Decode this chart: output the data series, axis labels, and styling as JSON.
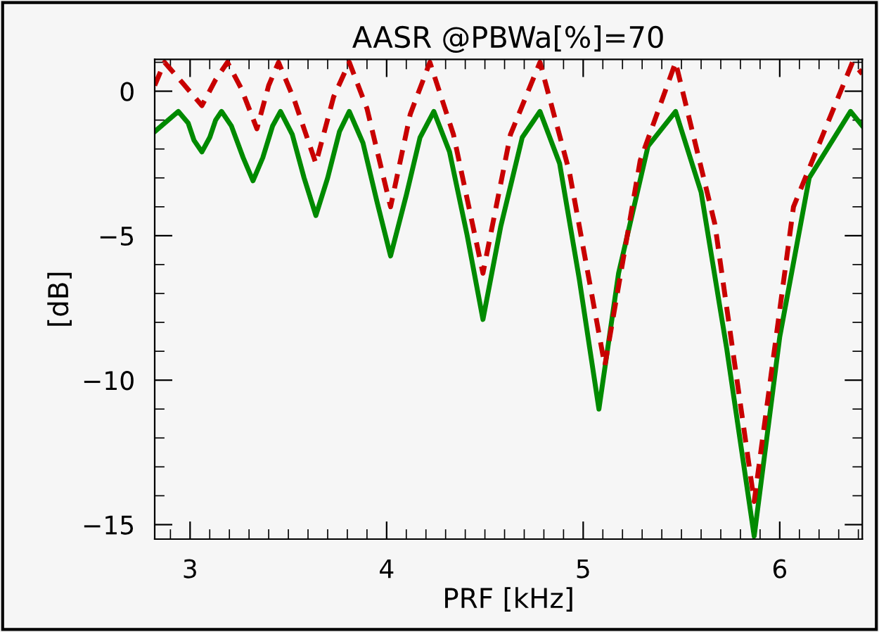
{
  "chart_data": {
    "type": "line",
    "title": "AASR @PBWa[%]=70",
    "xlabel": "PRF [kHz]",
    "ylabel": "[dB]",
    "xlim": [
      2.82,
      6.42
    ],
    "ylim": [
      -15.5,
      1.1
    ],
    "xticks": [
      {
        "value": 2.9,
        "label": null
      },
      3,
      {
        "value": 3.1,
        "label": null
      },
      {
        "value": 3.2,
        "label": null
      },
      {
        "value": 3.3,
        "label": null
      },
      {
        "value": 3.4,
        "label": null
      },
      {
        "value": 3.5,
        "label": null
      },
      {
        "value": 3.6,
        "label": null
      },
      {
        "value": 3.7,
        "label": null
      },
      {
        "value": 3.8,
        "label": null
      },
      {
        "value": 3.9,
        "label": null
      },
      4,
      {
        "value": 4.1,
        "label": null
      },
      {
        "value": 4.2,
        "label": null
      },
      {
        "value": 4.3,
        "label": null
      },
      {
        "value": 4.4,
        "label": null
      },
      {
        "value": 4.5,
        "label": null
      },
      {
        "value": 4.6,
        "label": null
      },
      {
        "value": 4.7,
        "label": null
      },
      {
        "value": 4.8,
        "label": null
      },
      {
        "value": 4.9,
        "label": null
      },
      5,
      {
        "value": 5.1,
        "label": null
      },
      {
        "value": 5.2,
        "label": null
      },
      {
        "value": 5.3,
        "label": null
      },
      {
        "value": 5.4,
        "label": null
      },
      {
        "value": 5.5,
        "label": null
      },
      {
        "value": 5.6,
        "label": null
      },
      {
        "value": 5.7,
        "label": null
      },
      {
        "value": 5.8,
        "label": null
      },
      {
        "value": 5.9,
        "label": null
      },
      6,
      {
        "value": 6.1,
        "label": null
      },
      {
        "value": 6.2,
        "label": null
      },
      {
        "value": 6.3,
        "label": null
      },
      {
        "value": 6.4,
        "label": null
      }
    ],
    "yticks": [
      {
        "value": -15,
        "label": "−15"
      },
      {
        "value": -14,
        "label": null
      },
      {
        "value": -13,
        "label": null
      },
      {
        "value": -12,
        "label": null
      },
      {
        "value": -11,
        "label": null
      },
      {
        "value": -10,
        "label": "−10"
      },
      {
        "value": -9,
        "label": null
      },
      {
        "value": -8,
        "label": null
      },
      {
        "value": -7,
        "label": null
      },
      {
        "value": -6,
        "label": null
      },
      {
        "value": -5,
        "label": "−5"
      },
      {
        "value": -4,
        "label": null
      },
      {
        "value": -3,
        "label": null
      },
      {
        "value": -2,
        "label": null
      },
      {
        "value": -1,
        "label": null
      },
      0,
      {
        "value": 1,
        "label": null
      }
    ],
    "grid": false,
    "legend": false,
    "series": [
      {
        "color": "#008a00",
        "line_style": "solid",
        "x": [
          2.82,
          2.94,
          2.99,
          3.02,
          3.06,
          3.1,
          3.13,
          3.16,
          3.21,
          3.27,
          3.32,
          3.37,
          3.42,
          3.46,
          3.52,
          3.58,
          3.64,
          3.7,
          3.76,
          3.81,
          3.88,
          3.95,
          4.02,
          4.1,
          4.17,
          4.24,
          4.32,
          4.41,
          4.49,
          4.58,
          4.69,
          4.78,
          4.88,
          4.98,
          5.08,
          5.18,
          5.33,
          5.47,
          5.6,
          5.73,
          5.87,
          6.0,
          6.15,
          6.36,
          6.42
        ],
        "values": [
          -1.4,
          -0.7,
          -1.1,
          -1.7,
          -2.1,
          -1.6,
          -1.0,
          -0.7,
          -1.2,
          -2.3,
          -3.1,
          -2.3,
          -1.2,
          -0.7,
          -1.5,
          -3.0,
          -4.3,
          -3.0,
          -1.4,
          -0.7,
          -1.8,
          -3.8,
          -5.7,
          -3.6,
          -1.6,
          -0.7,
          -2.1,
          -5.0,
          -7.9,
          -4.7,
          -1.6,
          -0.7,
          -2.5,
          -6.5,
          -11.0,
          -6.3,
          -1.9,
          -0.7,
          -3.5,
          -8.9,
          -15.4,
          -8.5,
          -3.0,
          -0.7,
          -1.2
        ]
      },
      {
        "color": "#c80000",
        "line_style": "dashed",
        "x": [
          2.82,
          2.87,
          2.96,
          3.06,
          3.13,
          3.19,
          3.26,
          3.34,
          3.4,
          3.45,
          3.53,
          3.64,
          3.73,
          3.81,
          3.9,
          4.02,
          4.12,
          4.22,
          4.34,
          4.49,
          4.63,
          4.78,
          4.93,
          5.11,
          5.29,
          5.47,
          5.67,
          5.87,
          6.07,
          6.37,
          6.42
        ],
        "values": [
          0.2,
          1.0,
          0.3,
          -0.5,
          0.4,
          1.0,
          0.1,
          -1.3,
          0.2,
          1.0,
          -0.3,
          -2.5,
          -0.2,
          1.0,
          -0.6,
          -4.0,
          -0.8,
          1.0,
          -1.5,
          -6.3,
          -1.5,
          1.0,
          -2.8,
          -9.5,
          -2.4,
          1.0,
          -4.6,
          -14.2,
          -4.0,
          1.0,
          0.6
        ]
      }
    ]
  }
}
